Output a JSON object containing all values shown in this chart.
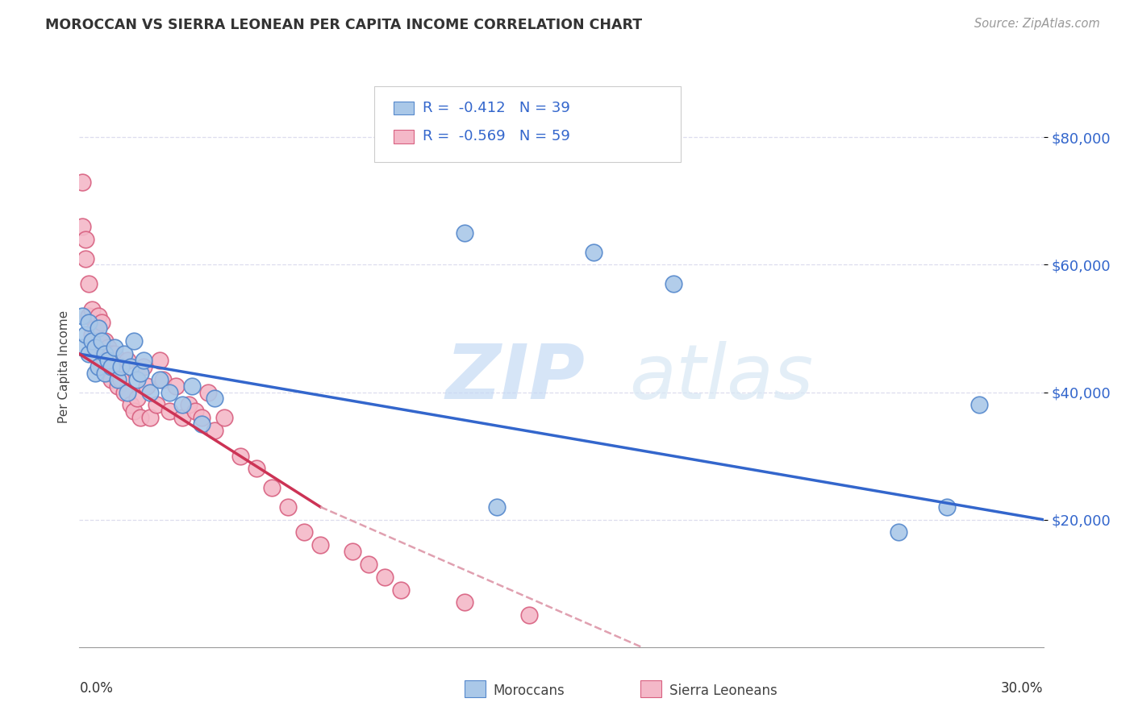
{
  "title": "MOROCCAN VS SIERRA LEONEAN PER CAPITA INCOME CORRELATION CHART",
  "source": "Source: ZipAtlas.com",
  "ylabel": "Per Capita Income",
  "y_ticks": [
    20000,
    40000,
    60000,
    80000
  ],
  "y_tick_labels": [
    "$20,000",
    "$40,000",
    "$60,000",
    "$80,000"
  ],
  "x_min": 0.0,
  "x_max": 0.3,
  "y_min": 0,
  "y_max": 88000,
  "moroccan_color": "#aac8e8",
  "moroccan_edge": "#5588cc",
  "sierra_color": "#f4b8c8",
  "sierra_edge": "#d86080",
  "trend_moroccan_color": "#3366cc",
  "trend_sierra_color": "#cc3355",
  "trend_dashed_color": "#e0a0b0",
  "legend_moroccan_label": "Moroccans",
  "legend_sierra_label": "Sierra Leoneans",
  "r_moroccan": "-0.412",
  "n_moroccan": "39",
  "r_sierra": "-0.569",
  "n_sierra": "59",
  "watermark_zip": "ZIP",
  "watermark_atlas": "atlas",
  "moroccan_x": [
    0.001,
    0.001,
    0.002,
    0.003,
    0.003,
    0.004,
    0.005,
    0.005,
    0.006,
    0.006,
    0.007,
    0.008,
    0.008,
    0.009,
    0.01,
    0.011,
    0.012,
    0.013,
    0.014,
    0.015,
    0.016,
    0.017,
    0.018,
    0.019,
    0.02,
    0.022,
    0.025,
    0.028,
    0.032,
    0.035,
    0.038,
    0.042,
    0.13,
    0.16,
    0.185,
    0.255,
    0.27,
    0.28,
    0.12
  ],
  "moroccan_y": [
    47000,
    52000,
    49000,
    51000,
    46000,
    48000,
    47000,
    43000,
    50000,
    44000,
    48000,
    46000,
    43000,
    45000,
    44000,
    47000,
    42000,
    44000,
    46000,
    40000,
    44000,
    48000,
    42000,
    43000,
    45000,
    40000,
    42000,
    40000,
    38000,
    41000,
    35000,
    39000,
    22000,
    62000,
    57000,
    18000,
    22000,
    38000,
    65000
  ],
  "sierra_x": [
    0.001,
    0.001,
    0.002,
    0.002,
    0.003,
    0.003,
    0.004,
    0.004,
    0.005,
    0.005,
    0.005,
    0.006,
    0.006,
    0.007,
    0.007,
    0.007,
    0.008,
    0.008,
    0.009,
    0.009,
    0.01,
    0.01,
    0.011,
    0.012,
    0.012,
    0.013,
    0.014,
    0.015,
    0.016,
    0.017,
    0.018,
    0.019,
    0.02,
    0.021,
    0.022,
    0.024,
    0.025,
    0.026,
    0.028,
    0.03,
    0.032,
    0.034,
    0.036,
    0.038,
    0.04,
    0.042,
    0.045,
    0.05,
    0.055,
    0.06,
    0.065,
    0.07,
    0.075,
    0.085,
    0.09,
    0.095,
    0.1,
    0.12,
    0.14
  ],
  "sierra_y": [
    73000,
    66000,
    64000,
    61000,
    57000,
    52000,
    53000,
    49000,
    50000,
    47000,
    46000,
    52000,
    48000,
    51000,
    47000,
    44000,
    48000,
    45000,
    47000,
    43000,
    46000,
    42000,
    46000,
    44000,
    41000,
    42000,
    40000,
    45000,
    38000,
    37000,
    39000,
    36000,
    44000,
    41000,
    36000,
    38000,
    45000,
    42000,
    37000,
    41000,
    36000,
    38000,
    37000,
    36000,
    40000,
    34000,
    36000,
    30000,
    28000,
    25000,
    22000,
    18000,
    16000,
    15000,
    13000,
    11000,
    9000,
    7000,
    5000
  ],
  "trend_moroccan_x0": 0.0,
  "trend_moroccan_y0": 46000,
  "trend_moroccan_x1": 0.3,
  "trend_moroccan_y1": 20000,
  "trend_sierra_x0": 0.0,
  "trend_sierra_y0": 46000,
  "trend_sierra_x1_solid": 0.075,
  "trend_sierra_y1_solid": 22000,
  "trend_sierra_x1_dashed": 0.175,
  "trend_sierra_y1_dashed": 0
}
